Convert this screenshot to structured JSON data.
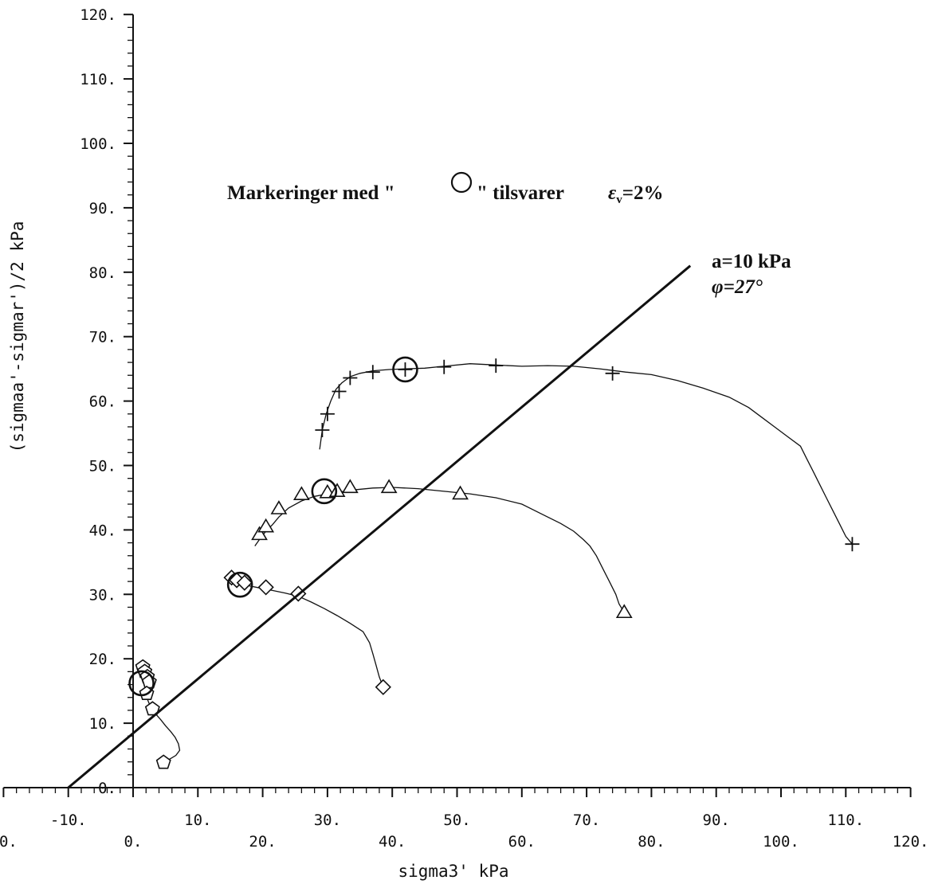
{
  "chart_data": {
    "type": "line",
    "xlabel": "sigma3' kPa",
    "ylabel": "(sigmaa'-sigmar')/2 kPa",
    "xlim": [
      -20,
      120
    ],
    "ylim": [
      -20,
      120
    ],
    "x_ticks_upper": [
      "-10.",
      "10.",
      "30.",
      "50.",
      "70.",
      "90.",
      "110."
    ],
    "x_ticks_lower": [
      "0.",
      "0.",
      "20.",
      "40.",
      "60.",
      "80.",
      "100.",
      "120."
    ],
    "y_ticks": [
      "0.",
      "10.",
      "20.",
      "30.",
      "40.",
      "50.",
      "60.",
      "70.",
      "80.",
      "90.",
      "100.",
      "110.",
      "120."
    ],
    "annotation": {
      "text_before": "Markeringer med \"",
      "text_after": "\" tilsvarer",
      "epsilon": "ε",
      "epsilon_sub": "v",
      "value": "=2%"
    },
    "line_label_a": "a=10 kPa",
    "line_label_phi": "φ=27°",
    "failure_line": {
      "x": [
        -10,
        86
      ],
      "y": [
        0,
        81
      ]
    },
    "series": [
      {
        "marker": "plus",
        "x": [
          28.8,
          29.2,
          29.8,
          30.5,
          31.3,
          32.2,
          33.5,
          35.0,
          37.0,
          39.5,
          42.0,
          45.0,
          48.0,
          52.0,
          56.0,
          60.0,
          64.0,
          68.0,
          72.0,
          76.0,
          80.0,
          84.0,
          88.0,
          92.0,
          95.0,
          97.0,
          99.0,
          101.0,
          103.0,
          104.0,
          105.0,
          106.0,
          107.0,
          108.0,
          109.0,
          110.0,
          111.0
        ],
        "y": [
          52.5,
          55.5,
          58.0,
          60.0,
          61.8,
          62.8,
          63.8,
          64.3,
          64.7,
          64.9,
          65.0,
          65.1,
          65.4,
          65.8,
          65.6,
          65.4,
          65.5,
          65.4,
          65.0,
          64.5,
          64.1,
          63.2,
          62.0,
          60.6,
          59.0,
          57.5,
          56.0,
          54.5,
          53.0,
          51.0,
          49.0,
          47.0,
          45.0,
          43.0,
          41.0,
          39.0,
          37.8
        ],
        "markers_x": [
          29.2,
          30.0,
          31.8,
          33.5,
          37.0,
          42.0,
          48.0,
          56.0,
          74.0,
          111.0
        ],
        "markers_y": [
          55.5,
          58.0,
          61.5,
          63.6,
          64.5,
          64.9,
          65.3,
          65.5,
          64.3,
          37.8
        ],
        "circle_x": 42.0,
        "circle_y": 64.9
      },
      {
        "marker": "triangle",
        "x": [
          18.8,
          19.5,
          20.5,
          21.5,
          22.5,
          24.0,
          26.0,
          28.0,
          30.0,
          32.0,
          34.0,
          37.0,
          40.0,
          44.0,
          48.0,
          52.0,
          56.0,
          60.0,
          63.0,
          66.0,
          68.0,
          69.5,
          70.5,
          71.5,
          72.5,
          73.5,
          74.5,
          75.0,
          75.8
        ],
        "y": [
          37.5,
          38.5,
          39.8,
          40.8,
          42.0,
          43.4,
          44.5,
          45.2,
          45.6,
          45.9,
          46.2,
          46.5,
          46.6,
          46.4,
          46.0,
          45.6,
          45.0,
          44.0,
          42.5,
          41.0,
          39.8,
          38.5,
          37.5,
          36.0,
          34.0,
          32.0,
          30.0,
          28.5,
          27.2
        ],
        "markers_x": [
          19.5,
          20.5,
          22.5,
          26.0,
          30.0,
          31.5,
          33.5,
          39.5,
          50.5,
          75.8
        ],
        "markers_y": [
          39.3,
          40.5,
          43.3,
          45.5,
          45.8,
          46.0,
          46.6,
          46.6,
          45.6,
          27.2
        ],
        "circle_x": 29.5,
        "circle_y": 46.0
      },
      {
        "marker": "diamond",
        "x": [
          15.2,
          15.8,
          16.8,
          18.0,
          19.5,
          21.5,
          23.5,
          25.5,
          27.5,
          29.5,
          31.5,
          33.5,
          35.5,
          36.5,
          37.0,
          37.5,
          38.0,
          38.6
        ],
        "y": [
          32.5,
          32.1,
          31.8,
          31.3,
          31.0,
          30.6,
          30.2,
          29.7,
          28.8,
          27.8,
          26.7,
          25.5,
          24.2,
          22.5,
          20.8,
          19.0,
          17.2,
          15.6
        ],
        "markers_x": [
          15.2,
          16.0,
          17.2,
          20.5,
          25.5,
          38.6
        ],
        "markers_y": [
          32.6,
          32.2,
          31.8,
          31.1,
          30.1,
          15.6
        ],
        "circle_x": 16.5,
        "circle_y": 31.5
      },
      {
        "marker": "pentagon",
        "x": [
          1.5,
          1.8,
          2.2,
          2.5,
          2.3,
          2.0,
          2.1,
          2.5,
          3.0,
          3.6,
          4.3,
          5.0,
          5.8,
          6.5,
          7.0,
          7.2,
          6.6,
          5.6,
          4.7
        ],
        "y": [
          18.7,
          18.2,
          17.5,
          16.8,
          16.0,
          15.0,
          14.0,
          13.0,
          12.2,
          11.3,
          10.5,
          9.6,
          8.7,
          7.8,
          6.8,
          5.8,
          5.0,
          4.4,
          3.9
        ],
        "markers_x": [
          1.5,
          1.8,
          2.2,
          2.5,
          2.1,
          3.0,
          4.7
        ],
        "markers_y": [
          18.7,
          18.0,
          17.2,
          16.4,
          14.6,
          12.2,
          3.9
        ],
        "circle_x": 1.3,
        "circle_y": 16.2
      }
    ]
  }
}
